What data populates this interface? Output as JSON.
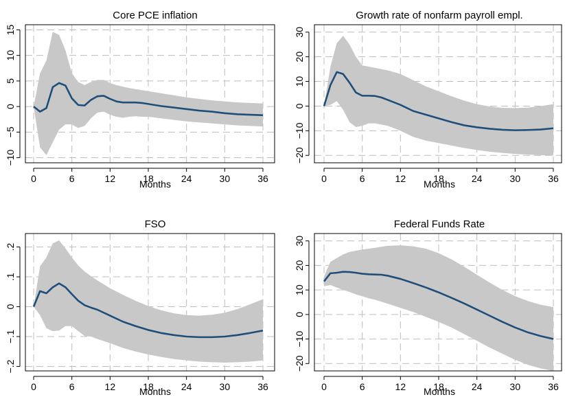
{
  "chart_data": [
    {
      "type": "line",
      "title": "Core PCE inflation",
      "xlabel": "Months",
      "ylabel": "",
      "xlim": [
        0,
        36
      ],
      "ylim": [
        -11,
        16
      ],
      "xticks": [
        0,
        6,
        12,
        18,
        24,
        30,
        36
      ],
      "xtick_labels": [
        "0",
        "6",
        "12",
        "18",
        "24",
        "30",
        "36"
      ],
      "yticks": [
        -10,
        -5,
        0,
        5,
        10,
        15
      ],
      "ytick_labels": [
        "−10",
        "−5",
        "0",
        "5",
        "10",
        "15"
      ],
      "grid": true,
      "x": [
        0,
        1,
        2,
        3,
        4,
        5,
        6,
        7,
        8,
        9,
        10,
        11,
        12,
        13,
        14,
        15,
        16,
        17,
        18,
        20,
        22,
        24,
        26,
        28,
        30,
        32,
        34,
        36
      ],
      "values": [
        0,
        -1,
        -0.3,
        3.8,
        4.6,
        4.1,
        1.6,
        0.3,
        0.2,
        1.3,
        2.0,
        2.1,
        1.5,
        1.0,
        0.8,
        0.8,
        0.8,
        0.7,
        0.5,
        0.1,
        -0.2,
        -0.5,
        -0.8,
        -1.0,
        -1.3,
        -1.5,
        -1.6,
        -1.7
      ],
      "upper": [
        0,
        6.5,
        9.0,
        14.6,
        14.0,
        11.0,
        6.5,
        4.8,
        4.2,
        4.8,
        5.2,
        5.2,
        4.6,
        4.2,
        3.9,
        3.6,
        3.4,
        3.2,
        3.0,
        2.6,
        2.2,
        1.8,
        1.5,
        1.2,
        1.0,
        0.8,
        0.7,
        0.6
      ],
      "lower": [
        0,
        -8.0,
        -9.5,
        -7.0,
        -4.5,
        -3.5,
        -3.5,
        -4.2,
        -3.8,
        -2.3,
        -1.2,
        -1.0,
        -1.6,
        -2.0,
        -2.2,
        -2.0,
        -1.9,
        -2.0,
        -2.0,
        -2.3,
        -2.6,
        -2.9,
        -3.1,
        -3.3,
        -3.5,
        -3.7,
        -3.8,
        -3.9
      ],
      "line_color": "#1f4e79",
      "band_color": "#c8c8c8"
    },
    {
      "type": "line",
      "title": "Growth rate of nonfarm payroll empl.",
      "xlabel": "Months",
      "ylabel": "",
      "xlim": [
        0,
        36
      ],
      "ylim": [
        -23,
        33
      ],
      "xticks": [
        0,
        6,
        12,
        18,
        24,
        30,
        36
      ],
      "xtick_labels": [
        "0",
        "6",
        "12",
        "18",
        "24",
        "30",
        "36"
      ],
      "yticks": [
        -20,
        -10,
        0,
        10,
        20,
        30
      ],
      "ytick_labels": [
        "−20",
        "−10",
        "0",
        "10",
        "20",
        "30"
      ],
      "grid": true,
      "x": [
        0,
        1,
        2,
        3,
        4,
        5,
        6,
        7,
        8,
        9,
        10,
        12,
        14,
        16,
        18,
        20,
        22,
        24,
        26,
        28,
        30,
        32,
        34,
        36
      ],
      "values": [
        0,
        8.5,
        13.8,
        13.0,
        9.5,
        5.5,
        4.2,
        4.2,
        4.1,
        3.5,
        2.5,
        0.5,
        -2.0,
        -3.5,
        -5.0,
        -6.5,
        -7.8,
        -8.6,
        -9.2,
        -9.6,
        -9.8,
        -9.7,
        -9.5,
        -9.0
      ],
      "upper": [
        0,
        16.0,
        25.5,
        28.5,
        25.0,
        20.0,
        16.5,
        16.0,
        15.5,
        15.0,
        14.5,
        13.0,
        10.5,
        8.0,
        6.0,
        4.0,
        2.2,
        0.8,
        -0.2,
        -0.7,
        -0.8,
        -0.6,
        0.0,
        0.8
      ],
      "lower": [
        0,
        0.5,
        2.0,
        -1.5,
        -6.5,
        -8.5,
        -8.0,
        -7.0,
        -7.0,
        -7.5,
        -8.0,
        -10.0,
        -12.5,
        -14.0,
        -15.0,
        -16.0,
        -17.0,
        -17.8,
        -18.5,
        -19.0,
        -19.4,
        -19.7,
        -19.9,
        -20.0
      ],
      "line_color": "#1f4e79",
      "band_color": "#c8c8c8"
    },
    {
      "type": "line",
      "title": "FSO",
      "xlabel": "Months",
      "ylabel": "",
      "xlim": [
        0,
        36
      ],
      "ylim": [
        -0.215,
        0.245
      ],
      "xticks": [
        0,
        6,
        12,
        18,
        24,
        30,
        36
      ],
      "xtick_labels": [
        "0",
        "6",
        "12",
        "18",
        "24",
        "30",
        "36"
      ],
      "yticks": [
        -0.2,
        -0.1,
        0,
        0.1,
        0.2
      ],
      "ytick_labels": [
        "−.2",
        "−.1",
        "0",
        ".1",
        ".2"
      ],
      "grid": true,
      "x": [
        0,
        1,
        2,
        3,
        4,
        5,
        6,
        7,
        8,
        9,
        10,
        12,
        14,
        16,
        18,
        20,
        22,
        24,
        26,
        28,
        30,
        32,
        34,
        36
      ],
      "values": [
        0,
        0.052,
        0.045,
        0.065,
        0.078,
        0.065,
        0.042,
        0.02,
        0.005,
        -0.003,
        -0.01,
        -0.03,
        -0.05,
        -0.065,
        -0.078,
        -0.088,
        -0.095,
        -0.1,
        -0.102,
        -0.102,
        -0.1,
        -0.095,
        -0.088,
        -0.08
      ],
      "upper": [
        0,
        0.135,
        0.165,
        0.212,
        0.222,
        0.195,
        0.165,
        0.138,
        0.118,
        0.102,
        0.088,
        0.062,
        0.04,
        0.02,
        0.002,
        -0.012,
        -0.022,
        -0.028,
        -0.03,
        -0.027,
        -0.02,
        -0.008,
        0.008,
        0.025
      ],
      "lower": [
        0,
        -0.028,
        -0.072,
        -0.082,
        -0.08,
        -0.065,
        -0.065,
        -0.082,
        -0.098,
        -0.1,
        -0.108,
        -0.122,
        -0.138,
        -0.15,
        -0.16,
        -0.168,
        -0.175,
        -0.18,
        -0.184,
        -0.186,
        -0.187,
        -0.186,
        -0.184,
        -0.18
      ],
      "line_color": "#1f4e79",
      "band_color": "#c8c8c8"
    },
    {
      "type": "line",
      "title": "Federal Funds Rate",
      "xlabel": "Months",
      "ylabel": "",
      "xlim": [
        0,
        36
      ],
      "ylim": [
        -23,
        33
      ],
      "xticks": [
        0,
        6,
        12,
        18,
        24,
        30,
        36
      ],
      "xtick_labels": [
        "0",
        "6",
        "12",
        "18",
        "24",
        "30",
        "36"
      ],
      "yticks": [
        -20,
        -10,
        0,
        10,
        20,
        30
      ],
      "ytick_labels": [
        "−20",
        "−10",
        "0",
        "10",
        "20",
        "30"
      ],
      "grid": true,
      "x": [
        0,
        1,
        2,
        3,
        4,
        5,
        6,
        7,
        8,
        9,
        10,
        12,
        14,
        16,
        18,
        20,
        22,
        24,
        26,
        28,
        30,
        32,
        34,
        36
      ],
      "values": [
        13.5,
        16.8,
        17.0,
        17.4,
        17.3,
        17.0,
        16.6,
        16.4,
        16.3,
        16.2,
        15.8,
        14.5,
        12.8,
        11.0,
        9.0,
        6.8,
        4.5,
        2.0,
        -0.5,
        -3.0,
        -5.3,
        -7.3,
        -8.8,
        -10.0
      ],
      "upper": [
        15.5,
        21.5,
        23.0,
        24.5,
        25.5,
        26.0,
        26.5,
        26.8,
        27.2,
        27.6,
        28.0,
        28.2,
        27.8,
        26.8,
        25.0,
        22.5,
        19.5,
        16.2,
        13.0,
        10.0,
        7.5,
        5.5,
        4.0,
        3.0
      ],
      "lower": [
        11.5,
        12.0,
        11.0,
        10.0,
        9.2,
        8.2,
        7.4,
        6.6,
        6.0,
        5.2,
        4.4,
        2.7,
        1.0,
        -1.0,
        -3.0,
        -5.3,
        -8.0,
        -10.7,
        -13.5,
        -16.0,
        -18.5,
        -20.5,
        -22.0,
        -23.0
      ],
      "line_color": "#1f4e79",
      "band_color": "#c8c8c8"
    }
  ]
}
